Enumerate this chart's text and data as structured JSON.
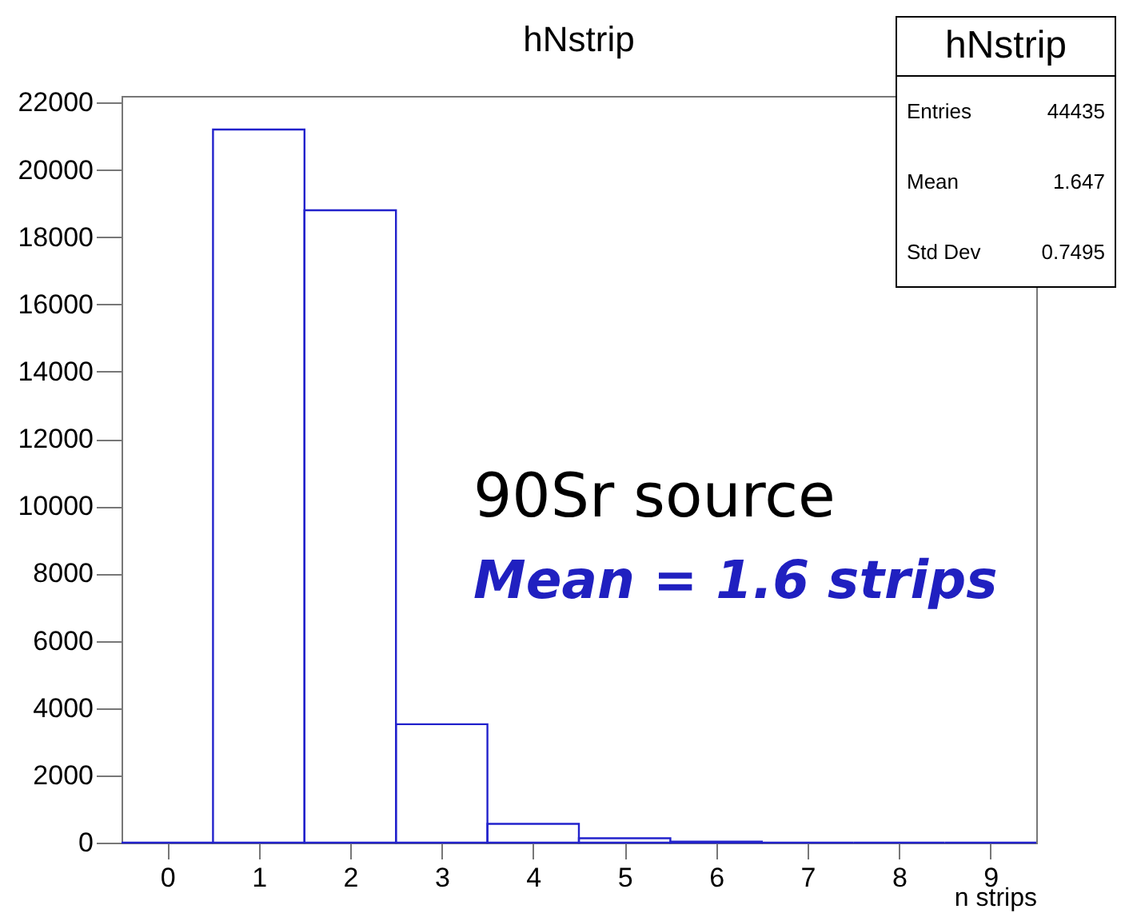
{
  "chart_data": {
    "type": "histogram",
    "title": "hNstrip",
    "xlabel": "n strips",
    "bins": [
      -0.5,
      0.5,
      1.5,
      2.5,
      3.5,
      4.5,
      5.5,
      6.5,
      7.5,
      8.5,
      9.5
    ],
    "values": [
      0,
      21200,
      18800,
      3520,
      560,
      130,
      30,
      0,
      0,
      0
    ],
    "color": "#2222cc",
    "xlim": [
      -0.5,
      9.5
    ],
    "xticks": [
      0,
      1,
      2,
      3,
      4,
      5,
      6,
      7,
      8,
      9
    ],
    "ylim": [
      0,
      22200
    ],
    "yticks": [
      0,
      2000,
      4000,
      6000,
      8000,
      10000,
      12000,
      14000,
      16000,
      18000,
      20000,
      22000
    ],
    "grid": false,
    "annotations": [
      "90Sr source",
      "Mean = 1.6 strips",
      "hNstrip",
      "Entries 44435",
      "Mean 1.647",
      "Std Dev 0.7495"
    ]
  }
}
